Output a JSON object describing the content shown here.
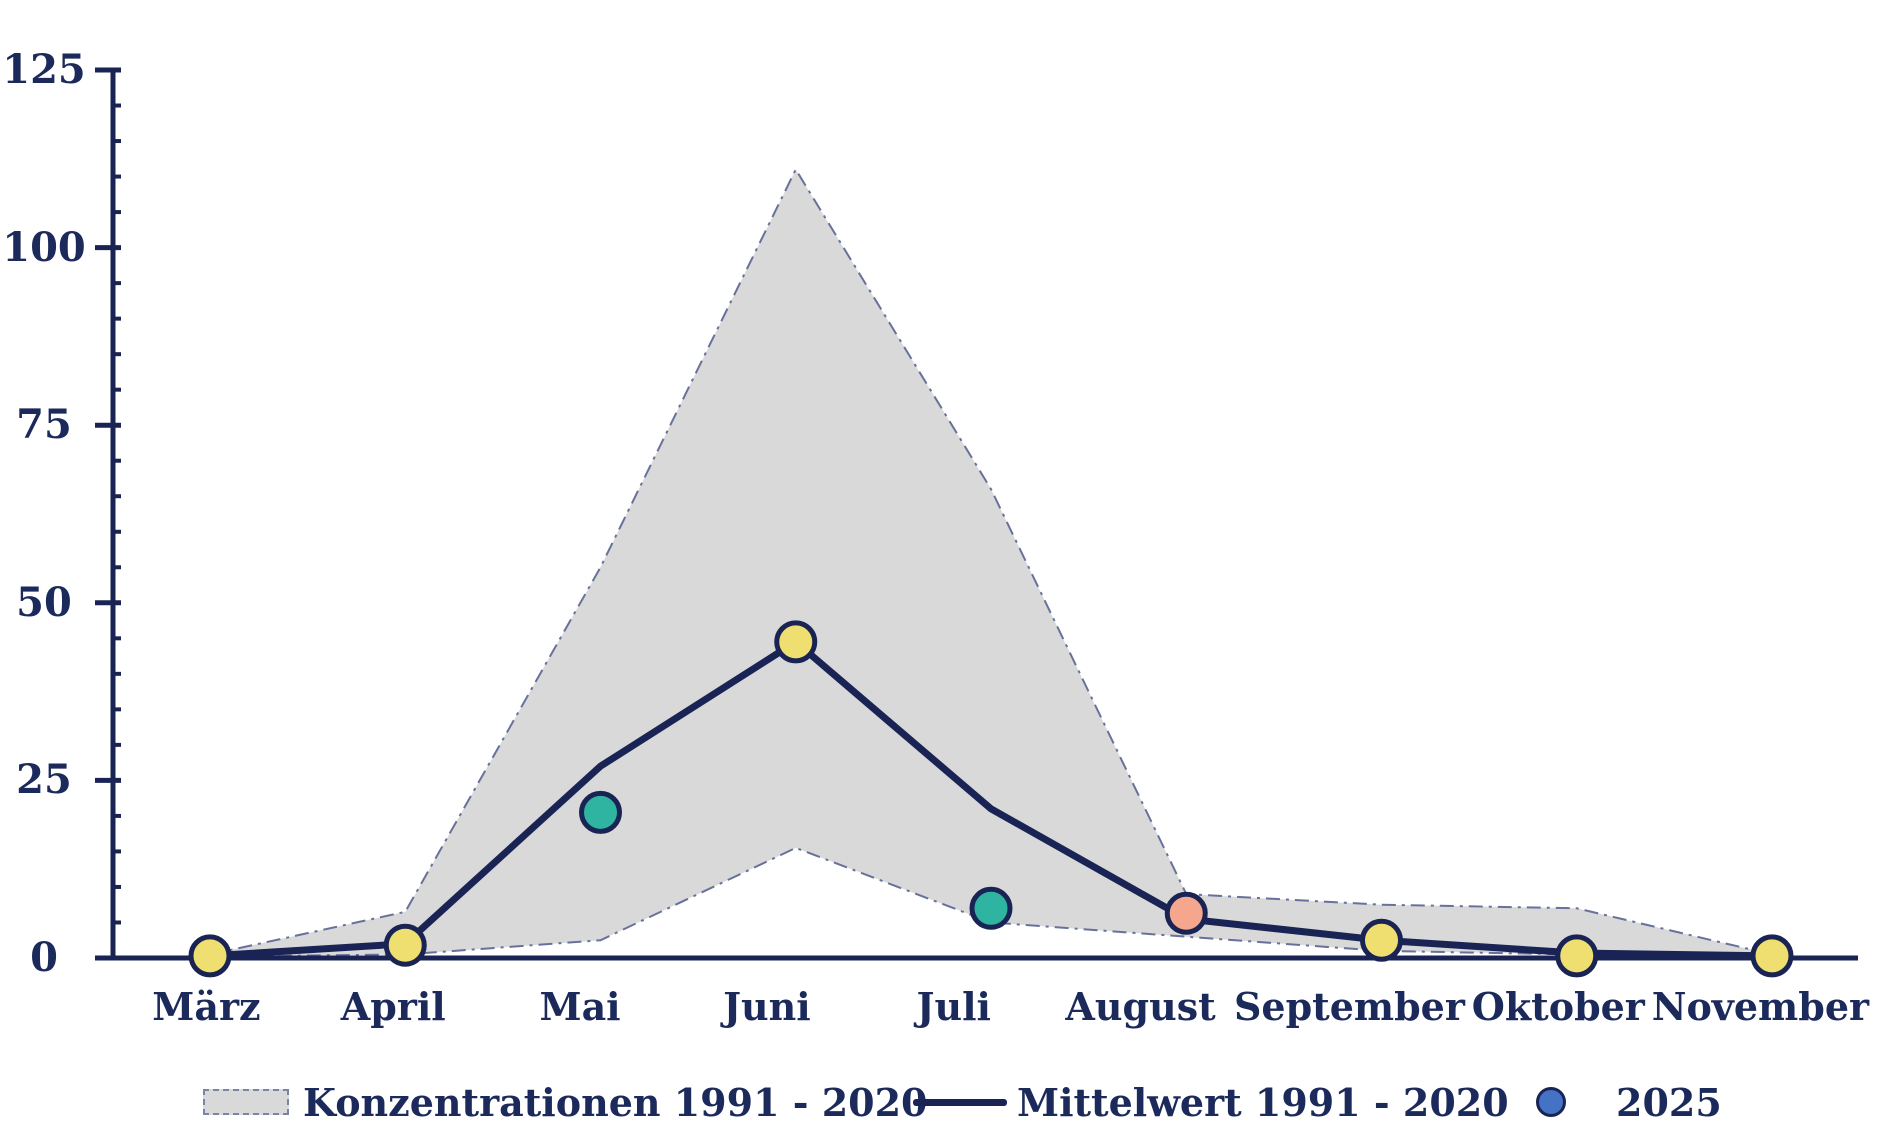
{
  "colors": {
    "background": "#ffffff",
    "axis": "#1a2454",
    "text": "#1b2a5b",
    "band_fill": "#d9d9d9",
    "band_border": "#67719b",
    "mean_line": "#1a2454",
    "point_border": "#1a2454",
    "legend_dot": "#4472c4"
  },
  "legend": {
    "items": [
      {
        "label": "Konzentrationen 1991 - 2020",
        "swatch": "band",
        "color": "#d9d9d9"
      },
      {
        "label": "Mittelwert 1991 - 2020",
        "swatch": "line",
        "color": "#1a2454"
      },
      {
        "label": "2025",
        "swatch": "dot",
        "color": "#4472c4"
      }
    ]
  },
  "chart_data": {
    "type": "line",
    "title": "",
    "xlabel": "",
    "ylabel": "",
    "categories": [
      "März",
      "April",
      "Mai",
      "Juni",
      "Juli",
      "August",
      "September",
      "Oktober",
      "November"
    ],
    "series": [
      {
        "name": "Konzentrationen 1991 - 2020 (Obergrenze)",
        "role": "band-upper",
        "values": [
          0.5,
          6.5,
          55,
          111,
          66,
          9,
          7.5,
          7,
          0.5
        ]
      },
      {
        "name": "Konzentrationen 1991 - 2020 (Untergrenze)",
        "role": "band-lower",
        "values": [
          0.2,
          0.5,
          2.5,
          15.5,
          5,
          3,
          1,
          0.5,
          0.2
        ]
      },
      {
        "name": "Mittelwert 1991 - 2020",
        "role": "mean-line",
        "values": [
          0.3,
          2,
          27,
          44.5,
          21,
          5.5,
          2.5,
          0.7,
          0.3
        ]
      },
      {
        "name": "2025",
        "role": "scatter",
        "values": [
          0.3,
          1.8,
          20.5,
          44.5,
          7,
          6.3,
          2.5,
          0.3,
          0.3
        ],
        "point_colors": [
          "#efdf70",
          "#efdf70",
          "#2eb4a1",
          "#efdf70",
          "#2eb4a1",
          "#f5a78e",
          "#efdf70",
          "#efdf70",
          "#efdf70"
        ]
      }
    ],
    "ylim": [
      0,
      125
    ],
    "yticks": [
      125,
      100,
      75,
      50,
      25,
      0
    ],
    "minor_tick_step": 5,
    "grid": false,
    "legend_position": "bottom"
  }
}
